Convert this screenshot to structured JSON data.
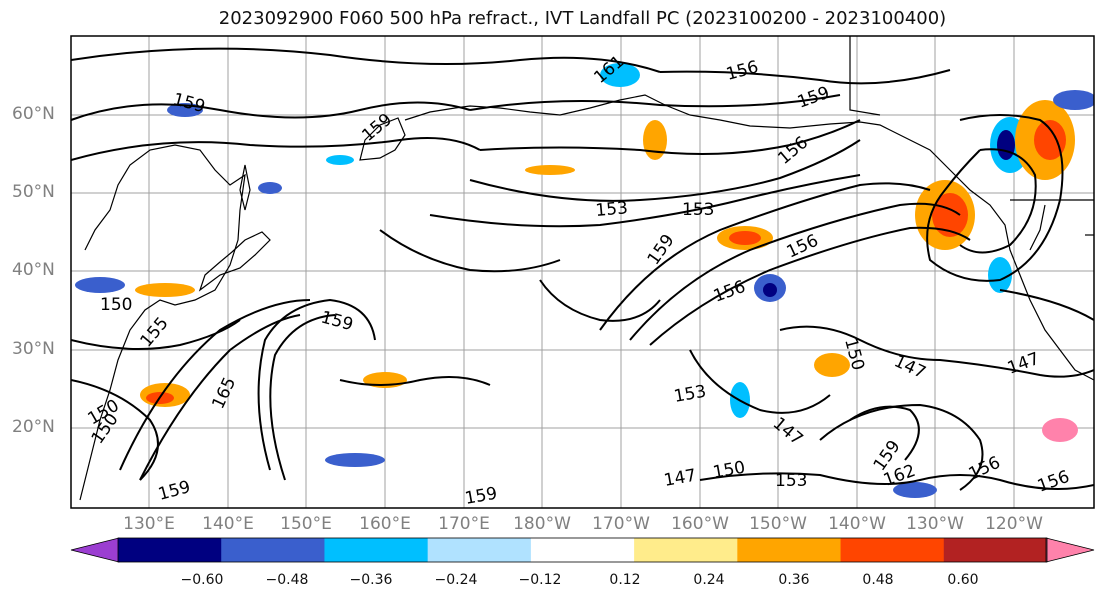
{
  "title": "2023092900 F060 500 hPa refract., IVT Landfall PC (2023100200 - 2023100400)",
  "lat_labels": [
    "60°N",
    "50°N",
    "40°N",
    "30°N",
    "20°N"
  ],
  "lon_labels": [
    "130°E",
    "140°E",
    "150°E",
    "160°E",
    "170°E",
    "180°W",
    "170°W",
    "160°W",
    "150°W",
    "140°W",
    "130°W",
    "120°W"
  ],
  "contour_labels": [
    "159",
    "159",
    "159",
    "156",
    "156",
    "153",
    "153",
    "159",
    "156",
    "156",
    "150",
    "150",
    "147",
    "147",
    "153",
    "153",
    "150",
    "147",
    "159",
    "162",
    "156",
    "156",
    "165",
    "159",
    "150",
    "150",
    "155",
    "159",
    "159",
    "161",
    "147"
  ],
  "colorbar": {
    "labels": [
      "−0.60",
      "−0.48",
      "−0.36",
      "−0.24",
      "−0.12",
      "0.12",
      "0.24",
      "0.36",
      "0.48",
      "0.60"
    ],
    "colors": [
      "#9b3ed1",
      "#000080",
      "#3a5fcd",
      "#00bfff",
      "#b0e2ff",
      "#ffffff",
      "#ffec8b",
      "#ffa500",
      "#ff4500",
      "#b22222",
      "#ff82ab"
    ]
  },
  "colors": {
    "contour": "#000000",
    "grid": "#a0a0a0",
    "coast": "#000000",
    "axis_label": "#808080"
  }
}
